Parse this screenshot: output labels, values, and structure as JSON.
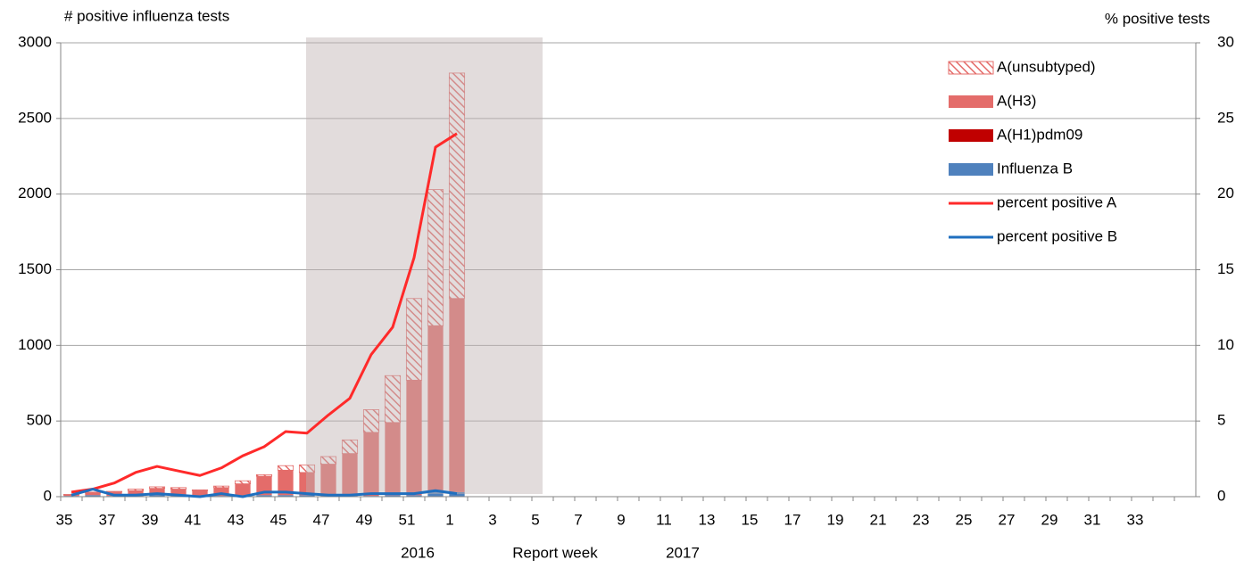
{
  "chart_data": {
    "type": "bar",
    "y_title": "# positive influenza tests",
    "y2_title": "% positive tests",
    "x_title": "Report week",
    "year_labels": [
      "2016",
      "2017"
    ],
    "categories": [
      "35",
      null,
      "37",
      null,
      "39",
      null,
      "41",
      null,
      "43",
      null,
      "45",
      null,
      "47",
      null,
      "49",
      null,
      "51",
      null,
      "1",
      null,
      "3",
      null,
      "5",
      null,
      "7",
      null,
      "9",
      null,
      "11",
      null,
      "13",
      null,
      "15",
      null,
      "17",
      null,
      "19",
      null,
      "21",
      null,
      "23",
      null,
      "25",
      null,
      "27",
      null,
      "29",
      null,
      "31",
      null,
      "33",
      null,
      null
    ],
    "ylim": [
      0,
      3000
    ],
    "yticks": [
      0,
      500,
      1000,
      1500,
      2000,
      2500,
      3000
    ],
    "y2lim": [
      0,
      30
    ],
    "y2ticks": [
      0,
      5,
      10,
      15,
      20,
      25,
      30
    ],
    "grid": true,
    "legend": "upper right",
    "series": [
      {
        "name": "A(unsubtyped)",
        "type": "bar",
        "color": "#e46c6a",
        "hatch": true,
        "values": [
          5,
          5,
          5,
          10,
          10,
          10,
          5,
          10,
          20,
          10,
          30,
          50,
          50,
          90,
          150,
          310,
          540,
          900,
          1490,
          null,
          null,
          null,
          null,
          null,
          null,
          null,
          null,
          null,
          null,
          null,
          null,
          null,
          null,
          null,
          null,
          null,
          null,
          null,
          null,
          null,
          null,
          null,
          null,
          null,
          null,
          null,
          null,
          null,
          null,
          null,
          null,
          null,
          null
        ]
      },
      {
        "name": "A(H3)",
        "type": "bar",
        "color": "#e46c6a",
        "values": [
          5,
          15,
          25,
          35,
          45,
          45,
          35,
          55,
          80,
          125,
          165,
          150,
          210,
          280,
          420,
          480,
          760,
          1090,
          1280,
          null,
          null,
          null,
          null,
          null,
          null,
          null,
          null,
          null,
          null,
          null,
          null,
          null,
          null,
          null,
          null,
          null,
          null,
          null,
          null,
          null,
          null,
          null,
          null,
          null,
          null,
          null,
          null,
          null,
          null,
          null,
          null,
          null,
          null
        ]
      },
      {
        "name": "A(H1)pdm09",
        "type": "bar",
        "color": "#c00000",
        "values": [
          0,
          0,
          0,
          0,
          0,
          0,
          0,
          0,
          0,
          0,
          0,
          0,
          0,
          0,
          0,
          0,
          0,
          0,
          0,
          null,
          null,
          null,
          null,
          null,
          null,
          null,
          null,
          null,
          null,
          null,
          null,
          null,
          null,
          null,
          null,
          null,
          null,
          null,
          null,
          null,
          null,
          null,
          null,
          null,
          null,
          null,
          null,
          null,
          null,
          null,
          null,
          null,
          null
        ]
      },
      {
        "name": "Influenza B",
        "type": "bar",
        "color": "#4f81bd",
        "values": [
          5,
          10,
          5,
          5,
          10,
          5,
          5,
          5,
          5,
          10,
          10,
          10,
          5,
          5,
          5,
          10,
          10,
          40,
          30,
          null,
          null,
          null,
          null,
          null,
          null,
          null,
          null,
          null,
          null,
          null,
          null,
          null,
          null,
          null,
          null,
          null,
          null,
          null,
          null,
          null,
          null,
          null,
          null,
          null,
          null,
          null,
          null,
          null,
          null,
          null,
          null,
          null,
          null
        ]
      },
      {
        "name": "percent positive A",
        "type": "line",
        "axis": "y2",
        "color": "#ff2a2a",
        "values": [
          0.3,
          0.5,
          0.9,
          1.6,
          2.0,
          1.7,
          1.4,
          1.9,
          2.7,
          3.3,
          4.3,
          4.2,
          5.4,
          6.5,
          9.4,
          11.2,
          15.8,
          23.1,
          24.0,
          null,
          null,
          null,
          null,
          null,
          null,
          null,
          null,
          null,
          null,
          null,
          null,
          null,
          null,
          null,
          null,
          null,
          null,
          null,
          null,
          null,
          null,
          null,
          null,
          null,
          null,
          null,
          null,
          null,
          null,
          null,
          null,
          null,
          null
        ]
      },
      {
        "name": "percent positive B",
        "type": "line",
        "axis": "y2",
        "color": "#1f6fbf",
        "values": [
          0.1,
          0.5,
          0.1,
          0.1,
          0.2,
          0.1,
          0.0,
          0.2,
          0.0,
          0.3,
          0.3,
          0.2,
          0.1,
          0.1,
          0.2,
          0.2,
          0.2,
          0.4,
          0.2,
          null,
          null,
          null,
          null,
          null,
          null,
          null,
          null,
          null,
          null,
          null,
          null,
          null,
          null,
          null,
          null,
          null,
          null,
          null,
          null,
          null,
          null,
          null,
          null,
          null,
          null,
          null,
          null,
          null,
          null,
          null,
          null,
          null,
          null
        ]
      }
    ]
  }
}
